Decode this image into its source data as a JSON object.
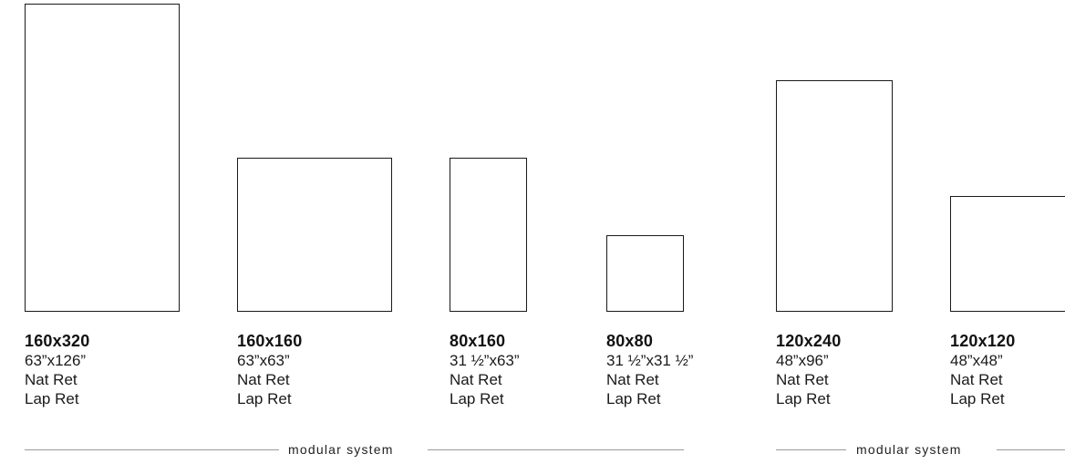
{
  "formats": [
    {
      "size": "160x320",
      "inches": "63”x126”",
      "finish_1": "Nat Ret",
      "finish_2": "Lap Ret"
    },
    {
      "size": "160x160",
      "inches": "63”x63”",
      "finish_1": "Nat Ret",
      "finish_2": "Lap Ret"
    },
    {
      "size": "80x160",
      "inches": "31 ½”x63”",
      "finish_1": "Nat Ret",
      "finish_2": "Lap Ret"
    },
    {
      "size": "80x80",
      "inches": "31 ½”x31 ½”",
      "finish_1": "Nat Ret",
      "finish_2": "Lap Ret"
    },
    {
      "size": "120x240",
      "inches": "48”x96”",
      "finish_1": "Nat Ret",
      "finish_2": "Lap Ret"
    },
    {
      "size": "120x120",
      "inches": "48”x48”",
      "finish_1": "Nat Ret",
      "finish_2": "Lap Ret"
    }
  ],
  "groups": [
    {
      "label": "modular system"
    },
    {
      "label": "modular system"
    }
  ]
}
